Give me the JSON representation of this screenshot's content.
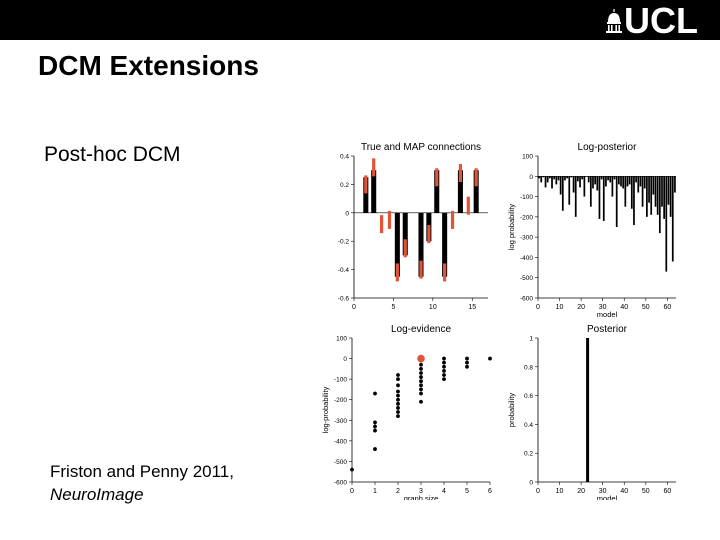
{
  "header": {
    "logo_text": "UCL"
  },
  "slide": {
    "title": "DCM Extensions",
    "subtitle": "Post-hoc DCM",
    "citation": {
      "authors": "Friston and Penny 2011,",
      "journal": "NeuroImage"
    }
  },
  "colors": {
    "bar": "#000000",
    "highlight": "#e0553a",
    "topbar": "#000000"
  },
  "chart_data": [
    {
      "type": "bar",
      "title": "True and MAP connections",
      "xlabel": "",
      "ylabel": "",
      "xlim": [
        0,
        17
      ],
      "ylim": [
        -0.6,
        0.4
      ],
      "x_ticks": [
        "0",
        "5",
        "10",
        "15"
      ],
      "y_ticks": [
        "0.4",
        "0.2",
        "0",
        "-0.2",
        "-0.4",
        "-0.6"
      ],
      "series": [
        {
          "values": [
            0,
            0.25,
            0.3,
            0,
            0,
            -0.45,
            -0.3,
            0,
            -0.45,
            -0.2,
            0.3,
            -0.45,
            0,
            0.3,
            0,
            0.3,
            0
          ]
        },
        {
          "values": [
            0,
            0.2,
            0.32,
            -0.08,
            -0.05,
            -0.42,
            -0.25,
            0,
            -0.4,
            -0.15,
            0.25,
            -0.42,
            -0.05,
            0.28,
            0.05,
            0.25,
            0
          ]
        }
      ]
    },
    {
      "type": "bar",
      "title": "Log-posterior",
      "xlabel": "model",
      "ylabel": "log probability",
      "xlim": [
        0,
        64
      ],
      "ylim": [
        -600,
        100
      ],
      "x_ticks": [
        "0",
        "10",
        "20",
        "30",
        "40",
        "50",
        "60"
      ],
      "y_ticks": [
        "100",
        "0",
        "-100",
        "-200",
        "-300",
        "-400",
        "-500",
        "-600"
      ],
      "values": [
        -10,
        -30,
        -5,
        -55,
        -30,
        -10,
        -60,
        -15,
        -40,
        -20,
        -90,
        -170,
        -20,
        -10,
        -140,
        -5,
        -80,
        -200,
        -25,
        -55,
        -15,
        -100,
        0,
        -30,
        -150,
        -60,
        -40,
        -70,
        -210,
        -15,
        -220,
        -50,
        -20,
        -30,
        -100,
        -15,
        -250,
        -40,
        -50,
        -60,
        -150,
        -50,
        -40,
        -160,
        -240,
        -30,
        -80,
        -50,
        -150,
        -60,
        -200,
        -130,
        -190,
        -90,
        -150,
        -190,
        -280,
        -150,
        -210,
        -470,
        -140,
        -200,
        -420,
        -80
      ]
    },
    {
      "type": "scatter",
      "title": "Log-evidence",
      "xlabel": "graph size",
      "ylabel": "log-probability",
      "xlim": [
        0,
        6
      ],
      "ylim": [
        -600,
        100
      ],
      "x_ticks": [
        "0",
        "1",
        "2",
        "3",
        "4",
        "5",
        "6"
      ],
      "y_ticks": [
        "100",
        "0",
        "-100",
        "-200",
        "-300",
        "-400",
        "-500",
        "-600"
      ],
      "points": [
        [
          0,
          -540
        ],
        [
          1,
          -170
        ],
        [
          1,
          -310
        ],
        [
          1,
          -330
        ],
        [
          1,
          -350
        ],
        [
          1,
          -440
        ],
        [
          2,
          -80
        ],
        [
          2,
          -100
        ],
        [
          2,
          -130
        ],
        [
          2,
          -160
        ],
        [
          2,
          -180
        ],
        [
          2,
          -200
        ],
        [
          2,
          -220
        ],
        [
          2,
          -240
        ],
        [
          2,
          -260
        ],
        [
          2,
          -280
        ],
        [
          3,
          -10
        ],
        [
          3,
          -30
        ],
        [
          3,
          -50
        ],
        [
          3,
          -70
        ],
        [
          3,
          -90
        ],
        [
          3,
          -110
        ],
        [
          3,
          -130
        ],
        [
          3,
          -150
        ],
        [
          3,
          -170
        ],
        [
          3,
          -210
        ],
        [
          4,
          0
        ],
        [
          4,
          -20
        ],
        [
          4,
          -40
        ],
        [
          4,
          -60
        ],
        [
          4,
          -80
        ],
        [
          4,
          -100
        ],
        [
          5,
          0
        ],
        [
          5,
          -20
        ],
        [
          5,
          -40
        ],
        [
          6,
          0
        ]
      ],
      "highlight": [
        3,
        0
      ]
    },
    {
      "type": "bar",
      "title": "Posterior",
      "xlabel": "model",
      "ylabel": "probability",
      "xlim": [
        0,
        64
      ],
      "ylim": [
        0,
        1
      ],
      "x_ticks": [
        "0",
        "10",
        "20",
        "30",
        "40",
        "50",
        "60"
      ],
      "y_ticks": [
        "1",
        "0.8",
        "0.6",
        "0.4",
        "0.2",
        "0"
      ],
      "bars": [
        [
          23,
          1
        ]
      ]
    }
  ]
}
